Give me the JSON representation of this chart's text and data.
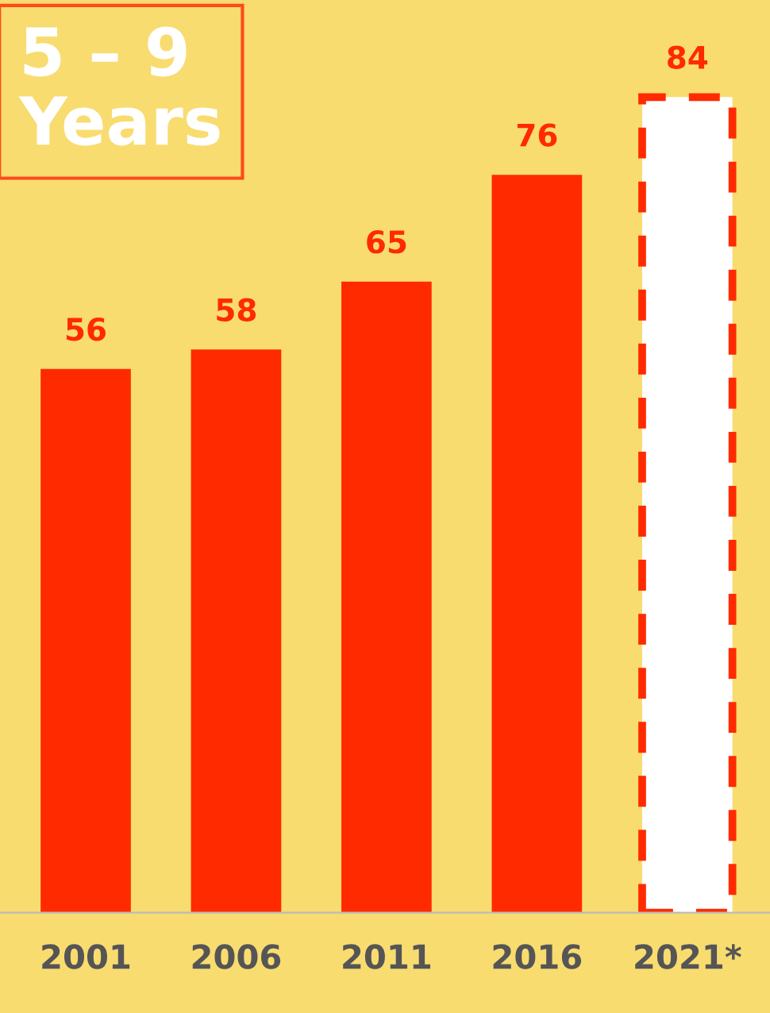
{
  "chart_data": {
    "type": "bar",
    "title": "5 – 9\nYears",
    "categories": [
      "2001",
      "2006",
      "2011",
      "2016",
      "2021*"
    ],
    "series": [
      {
        "color": "#ff2a00",
        "values": [
          56,
          58,
          65,
          76,
          null
        ]
      },
      {
        "color": "#ff2a00",
        "values": [
          null,
          null,
          null,
          null,
          84
        ],
        "line_style": "dashed"
      }
    ],
    "data_labels": true,
    "ylim": [
      0,
      94
    ],
    "tick_labels": "x",
    "grid": false,
    "legend": false
  }
}
